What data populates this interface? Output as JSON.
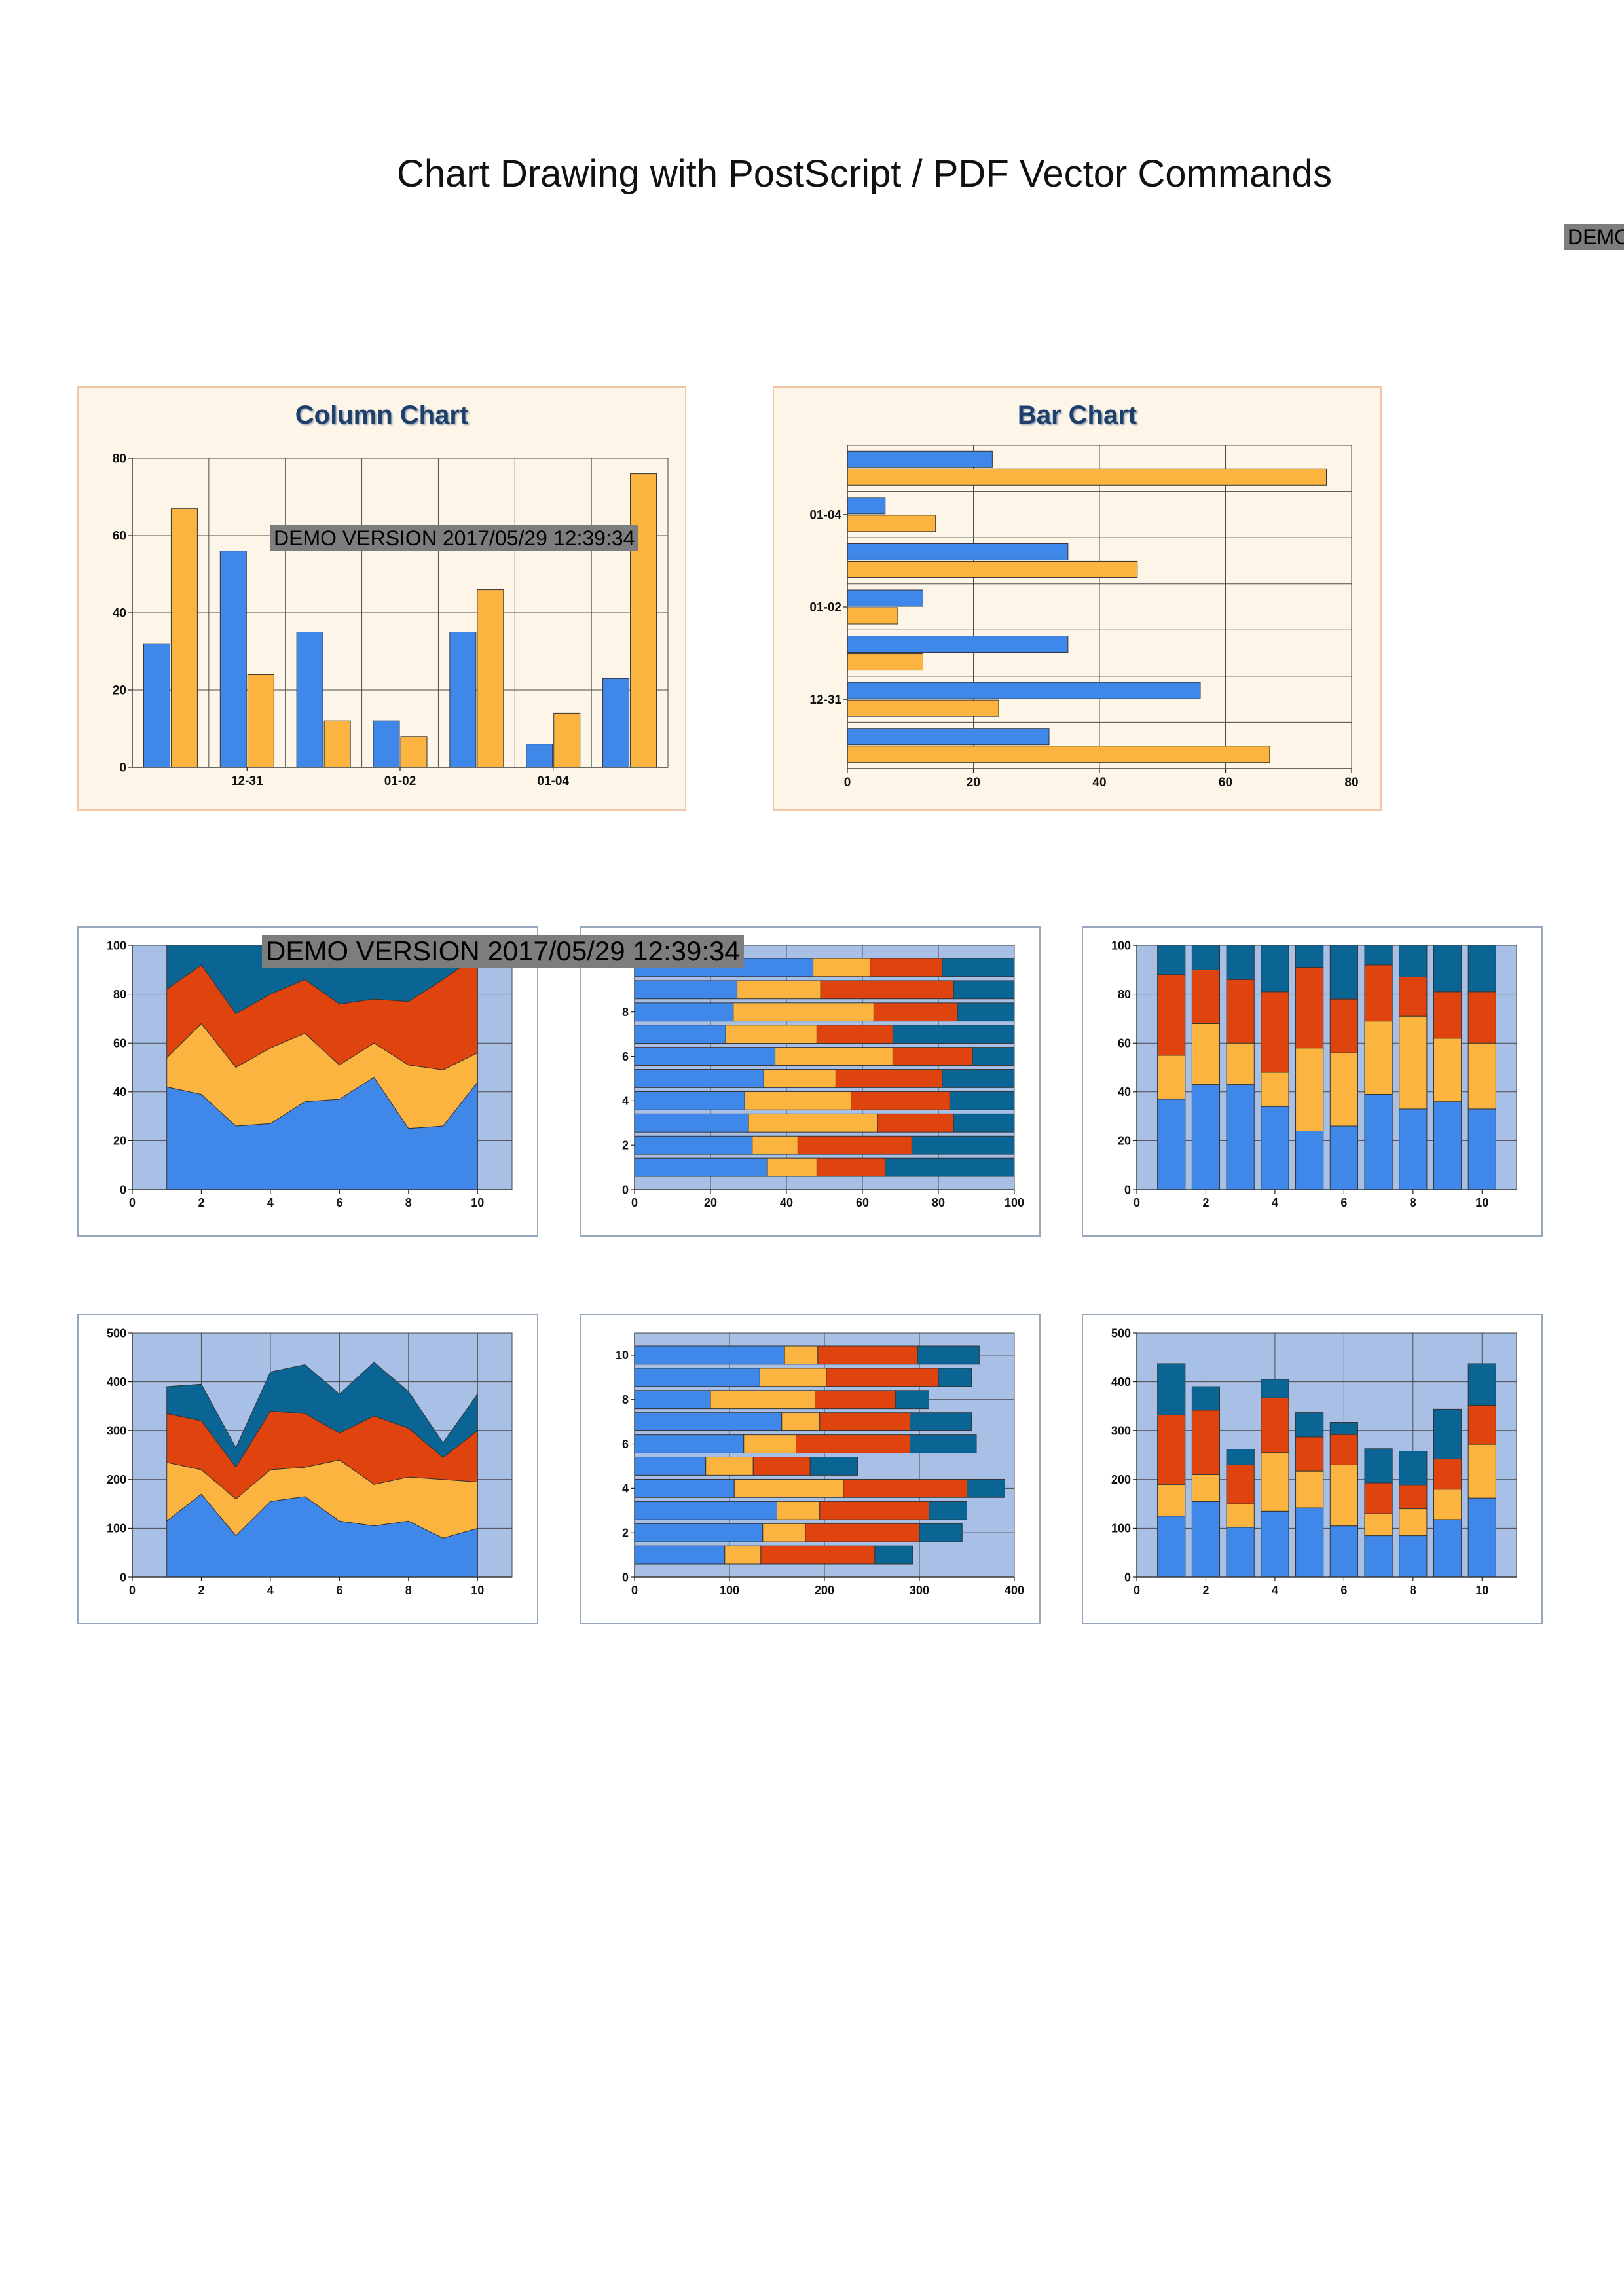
{
  "page": {
    "title": "Chart Drawing with PostScript / PDF Vector Commands",
    "watermark_corner": "DEMO",
    "watermark_1": "DEMO VERSION 2017/05/29 12:39:34",
    "watermark_2": "DEMO VERSION 2017/05/29 12:39:34"
  },
  "colors": {
    "blue": "#3f87e8",
    "orange": "#fbb440",
    "red": "#e0440e",
    "navy": "#0a6494",
    "plot_cream": "#fdf6e8",
    "plot_blue": "#a9c0e6",
    "title": "#1f3f6b"
  },
  "chart_data": [
    {
      "type": "bar",
      "orientation": "vertical",
      "title": "Column Chart",
      "ylim": [
        0,
        80
      ],
      "yticks": [
        0,
        20,
        40,
        60,
        80
      ],
      "xtick_labels": [
        "12-31",
        "01-02",
        "01-04"
      ],
      "categories": [
        "",
        "12-31",
        "",
        "01-02",
        "",
        "01-04",
        ""
      ],
      "series": [
        {
          "values": [
            32,
            56,
            35,
            12,
            35,
            6,
            23
          ]
        },
        {
          "values": [
            67,
            24,
            12,
            8,
            46,
            14,
            76
          ]
        }
      ],
      "grid": true
    },
    {
      "type": "bar",
      "orientation": "horizontal",
      "title": "Bar Chart",
      "xlim": [
        0,
        80
      ],
      "xticks": [
        0,
        20,
        40,
        60,
        80
      ],
      "ytick_labels": [
        "12-31",
        "01-02",
        "01-04"
      ],
      "categories": [
        "",
        "12-31",
        "",
        "01-02",
        "",
        "01-04",
        ""
      ],
      "series": [
        {
          "values": [
            32,
            56,
            35,
            12,
            35,
            6,
            23
          ]
        },
        {
          "values": [
            67,
            24,
            12,
            8,
            46,
            14,
            76
          ]
        }
      ],
      "grid": true
    },
    {
      "type": "area",
      "stacked": true,
      "normalized": true,
      "x": [
        1,
        2,
        3,
        4,
        5,
        6,
        7,
        8,
        9,
        10
      ],
      "xlim": [
        0,
        11
      ],
      "ylim": [
        0,
        100
      ],
      "xticks": [
        0,
        2,
        4,
        6,
        8,
        10
      ],
      "yticks": [
        0,
        20,
        40,
        60,
        80,
        100
      ],
      "series": [
        {
          "values": [
            42,
            39,
            26,
            27,
            36,
            37,
            46,
            25,
            26,
            44
          ]
        },
        {
          "values": [
            12,
            29,
            24,
            31,
            28,
            14,
            14,
            26,
            23,
            12
          ]
        },
        {
          "values": [
            28,
            24,
            22,
            22,
            22,
            25,
            18,
            26,
            37,
            40
          ]
        },
        {
          "values": [
            18,
            8,
            28,
            20,
            14,
            24,
            22,
            23,
            14,
            4
          ]
        }
      ],
      "grid": true
    },
    {
      "type": "bar",
      "orientation": "horizontal",
      "stacked": true,
      "normalized": true,
      "y": [
        1,
        2,
        3,
        4,
        5,
        6,
        7,
        8,
        9,
        10
      ],
      "xlim": [
        0,
        100
      ],
      "ylim": [
        0,
        11
      ],
      "xticks": [
        0,
        20,
        40,
        60,
        80,
        100
      ],
      "yticks": [
        0,
        2,
        4,
        6,
        8
      ],
      "series": [
        {
          "values": [
            35,
            31,
            30,
            29,
            34,
            37,
            24,
            26,
            27,
            47
          ]
        },
        {
          "values": [
            13,
            12,
            34,
            28,
            19,
            31,
            24,
            37,
            22,
            15
          ]
        },
        {
          "values": [
            18,
            30,
            20,
            26,
            28,
            21,
            20,
            22,
            35,
            19
          ]
        },
        {
          "values": [
            34,
            27,
            16,
            17,
            19,
            11,
            32,
            15,
            16,
            19
          ]
        }
      ],
      "grid": true
    },
    {
      "type": "bar",
      "orientation": "vertical",
      "stacked": true,
      "normalized": true,
      "x": [
        1,
        2,
        3,
        4,
        5,
        6,
        7,
        8,
        9,
        10
      ],
      "xlim": [
        0,
        11
      ],
      "ylim": [
        0,
        100
      ],
      "xticks": [
        0,
        2,
        4,
        6,
        8,
        10
      ],
      "yticks": [
        0,
        20,
        40,
        60,
        80,
        100
      ],
      "series": [
        {
          "values": [
            37,
            43,
            43,
            34,
            24,
            26,
            39,
            33,
            36,
            33
          ]
        },
        {
          "values": [
            18,
            25,
            17,
            14,
            34,
            30,
            30,
            38,
            26,
            27
          ]
        },
        {
          "values": [
            33,
            22,
            26,
            33,
            33,
            22,
            23,
            16,
            19,
            21
          ]
        },
        {
          "values": [
            12,
            10,
            14,
            19,
            9,
            22,
            8,
            13,
            19,
            19
          ]
        }
      ],
      "grid": true
    },
    {
      "type": "area",
      "stacked": true,
      "x": [
        1,
        2,
        3,
        4,
        5,
        6,
        7,
        8,
        9,
        10
      ],
      "xlim": [
        0,
        11
      ],
      "ylim": [
        0,
        500
      ],
      "xticks": [
        0,
        2,
        4,
        6,
        8,
        10
      ],
      "yticks": [
        0,
        100,
        200,
        300,
        400,
        500
      ],
      "series": [
        {
          "values": [
            115,
            170,
            85,
            155,
            165,
            115,
            105,
            115,
            80,
            100
          ]
        },
        {
          "values": [
            120,
            50,
            75,
            65,
            60,
            125,
            85,
            90,
            120,
            95
          ]
        },
        {
          "values": [
            100,
            100,
            65,
            120,
            110,
            55,
            140,
            100,
            45,
            105
          ]
        },
        {
          "values": [
            55,
            75,
            40,
            80,
            100,
            80,
            110,
            75,
            30,
            75
          ]
        }
      ],
      "grid": true
    },
    {
      "type": "bar",
      "orientation": "horizontal",
      "stacked": true,
      "y": [
        1,
        2,
        3,
        4,
        5,
        6,
        7,
        8,
        9,
        10
      ],
      "xlim": [
        0,
        400
      ],
      "ylim": [
        0,
        11
      ],
      "xticks": [
        0,
        100,
        200,
        300,
        400
      ],
      "yticks": [
        0,
        2,
        4,
        6,
        8,
        10
      ],
      "series": [
        {
          "values": [
            95,
            135,
            150,
            105,
            75,
            115,
            155,
            80,
            132,
            158
          ]
        },
        {
          "values": [
            38,
            45,
            45,
            115,
            50,
            55,
            40,
            110,
            70,
            35
          ]
        },
        {
          "values": [
            120,
            120,
            115,
            130,
            60,
            120,
            95,
            85,
            118,
            105
          ]
        },
        {
          "values": [
            40,
            45,
            40,
            40,
            50,
            70,
            65,
            35,
            35,
            65
          ]
        }
      ],
      "grid": true
    },
    {
      "type": "bar",
      "orientation": "vertical",
      "stacked": true,
      "x": [
        1,
        2,
        3,
        4,
        5,
        6,
        7,
        8,
        9,
        10
      ],
      "xlim": [
        0,
        11
      ],
      "ylim": [
        0,
        500
      ],
      "xticks": [
        0,
        2,
        4,
        6,
        8,
        10
      ],
      "yticks": [
        0,
        100,
        200,
        300,
        400,
        500
      ],
      "series": [
        {
          "values": [
            125,
            155,
            102,
            135,
            142,
            105,
            85,
            85,
            118,
            162
          ]
        },
        {
          "values": [
            65,
            55,
            48,
            120,
            75,
            125,
            45,
            55,
            62,
            110
          ]
        },
        {
          "values": [
            142,
            132,
            80,
            112,
            70,
            62,
            63,
            48,
            62,
            80
          ]
        },
        {
          "values": [
            105,
            48,
            32,
            38,
            50,
            25,
            70,
            70,
            102,
            85
          ]
        }
      ],
      "grid": true
    }
  ]
}
